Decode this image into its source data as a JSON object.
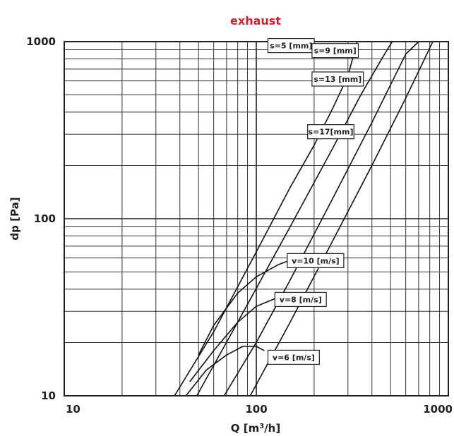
{
  "chart_data": {
    "type": "line",
    "title": "exhaust",
    "title_color": "#d0202e",
    "xlabel": "Q [m³/h]",
    "xlabel_main": "Q [m",
    "xlabel_sup": "3",
    "xlabel_end": "/h]",
    "ylabel": "dp [Pa]",
    "x_scale": "log",
    "y_scale": "log",
    "xlim": [
      10,
      1000
    ],
    "ylim": [
      10,
      1000
    ],
    "grid": true,
    "x_ticks": [
      10,
      100,
      1000
    ],
    "x_tick_labels": [
      "10",
      "100",
      "1000"
    ],
    "y_ticks": [
      10,
      100,
      1000
    ],
    "y_tick_labels": [
      "10",
      "100",
      "1000"
    ],
    "series": [
      {
        "name": "s=5 [mm]",
        "x": [
          37.5,
          60,
          100,
          150,
          200,
          250,
          300,
          335
        ],
        "y": [
          10,
          23,
          65,
          150,
          260,
          420,
          640,
          1000
        ]
      },
      {
        "name": "s=9 [mm]",
        "x": [
          49,
          80,
          150,
          250,
          350,
          450,
          510,
          570
        ],
        "y": [
          10,
          26,
          90,
          250,
          500,
          800,
          1000,
          1000
        ]
      },
      {
        "name": "s=13 [mm]",
        "x": [
          68,
          100,
          150,
          250,
          400,
          600,
          700
        ],
        "y": [
          10,
          20,
          45,
          130,
          350,
          850,
          1000
        ]
      },
      {
        "name": "s=17[mm]",
        "x": [
          93,
          150,
          250,
          400,
          600,
          830
        ],
        "y": [
          10,
          26,
          75,
          200,
          480,
          1000
        ]
      },
      {
        "name": "v=10 [m/s]",
        "x": [
          50,
          60,
          80,
          100,
          130,
          160,
          200
        ],
        "y": [
          17,
          25,
          38,
          47,
          55,
          60,
          61
        ]
      },
      {
        "name": "v=8 [m/s]",
        "x": [
          45,
          60,
          80,
          100,
          130,
          160
        ],
        "y": [
          12,
          18,
          26,
          32,
          36,
          37
        ]
      },
      {
        "name": "v=6 [m/s]",
        "x": [
          43,
          55,
          70,
          85,
          100,
          110
        ],
        "y": [
          10,
          14,
          17,
          19,
          19,
          18
        ]
      }
    ],
    "annotations": [
      {
        "text": "s=5 [mm]",
        "x": 115,
        "y": 950
      },
      {
        "text": "s=9 [mm]",
        "x": 195,
        "y": 890
      },
      {
        "text": "s=13 [mm]",
        "x": 195,
        "y": 615
      },
      {
        "text": "s=17[mm]",
        "x": 185,
        "y": 310
      },
      {
        "text": "v=10 [m/s]",
        "x": 145,
        "y": 58
      },
      {
        "text": "v=8 [m/s]",
        "x": 125,
        "y": 35
      },
      {
        "text": "v=6 [m/s]",
        "x": 115,
        "y": 16.5
      }
    ]
  }
}
